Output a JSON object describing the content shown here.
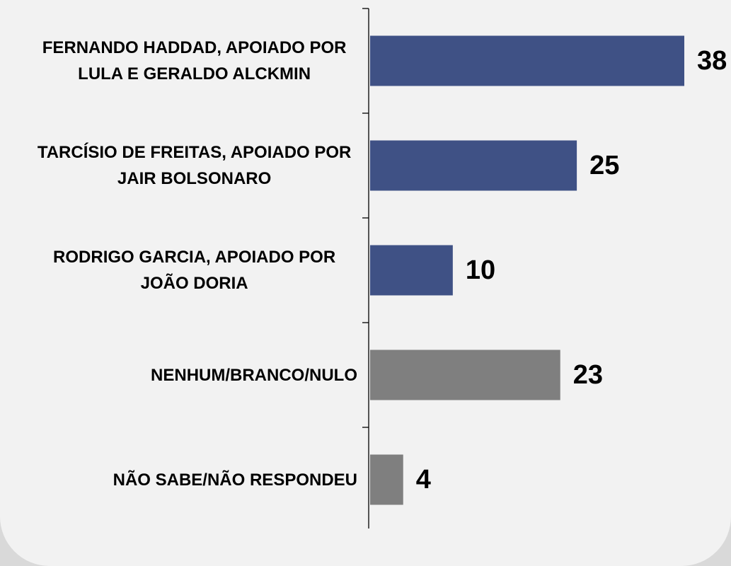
{
  "chart_data": {
    "type": "bar",
    "orientation": "horizontal",
    "categories": [
      "FERNANDO HADDAD, APOIADO POR LULA E GERALDO ALCKMIN",
      "TARCÍSIO DE FREITAS, APOIADO POR JAIR BOLSONARO",
      "RODRIGO GARCIA, APOIADO POR JOÃO DORIA",
      "NENHUM/BRANCO/NULO",
      "NÃO SABE/NÃO RESPONDEU"
    ],
    "values": [
      38,
      25,
      10,
      23,
      4
    ],
    "colors": [
      "#3f5185",
      "#3f5185",
      "#3f5185",
      "#7f7f7f",
      "#7f7f7f"
    ]
  }
}
